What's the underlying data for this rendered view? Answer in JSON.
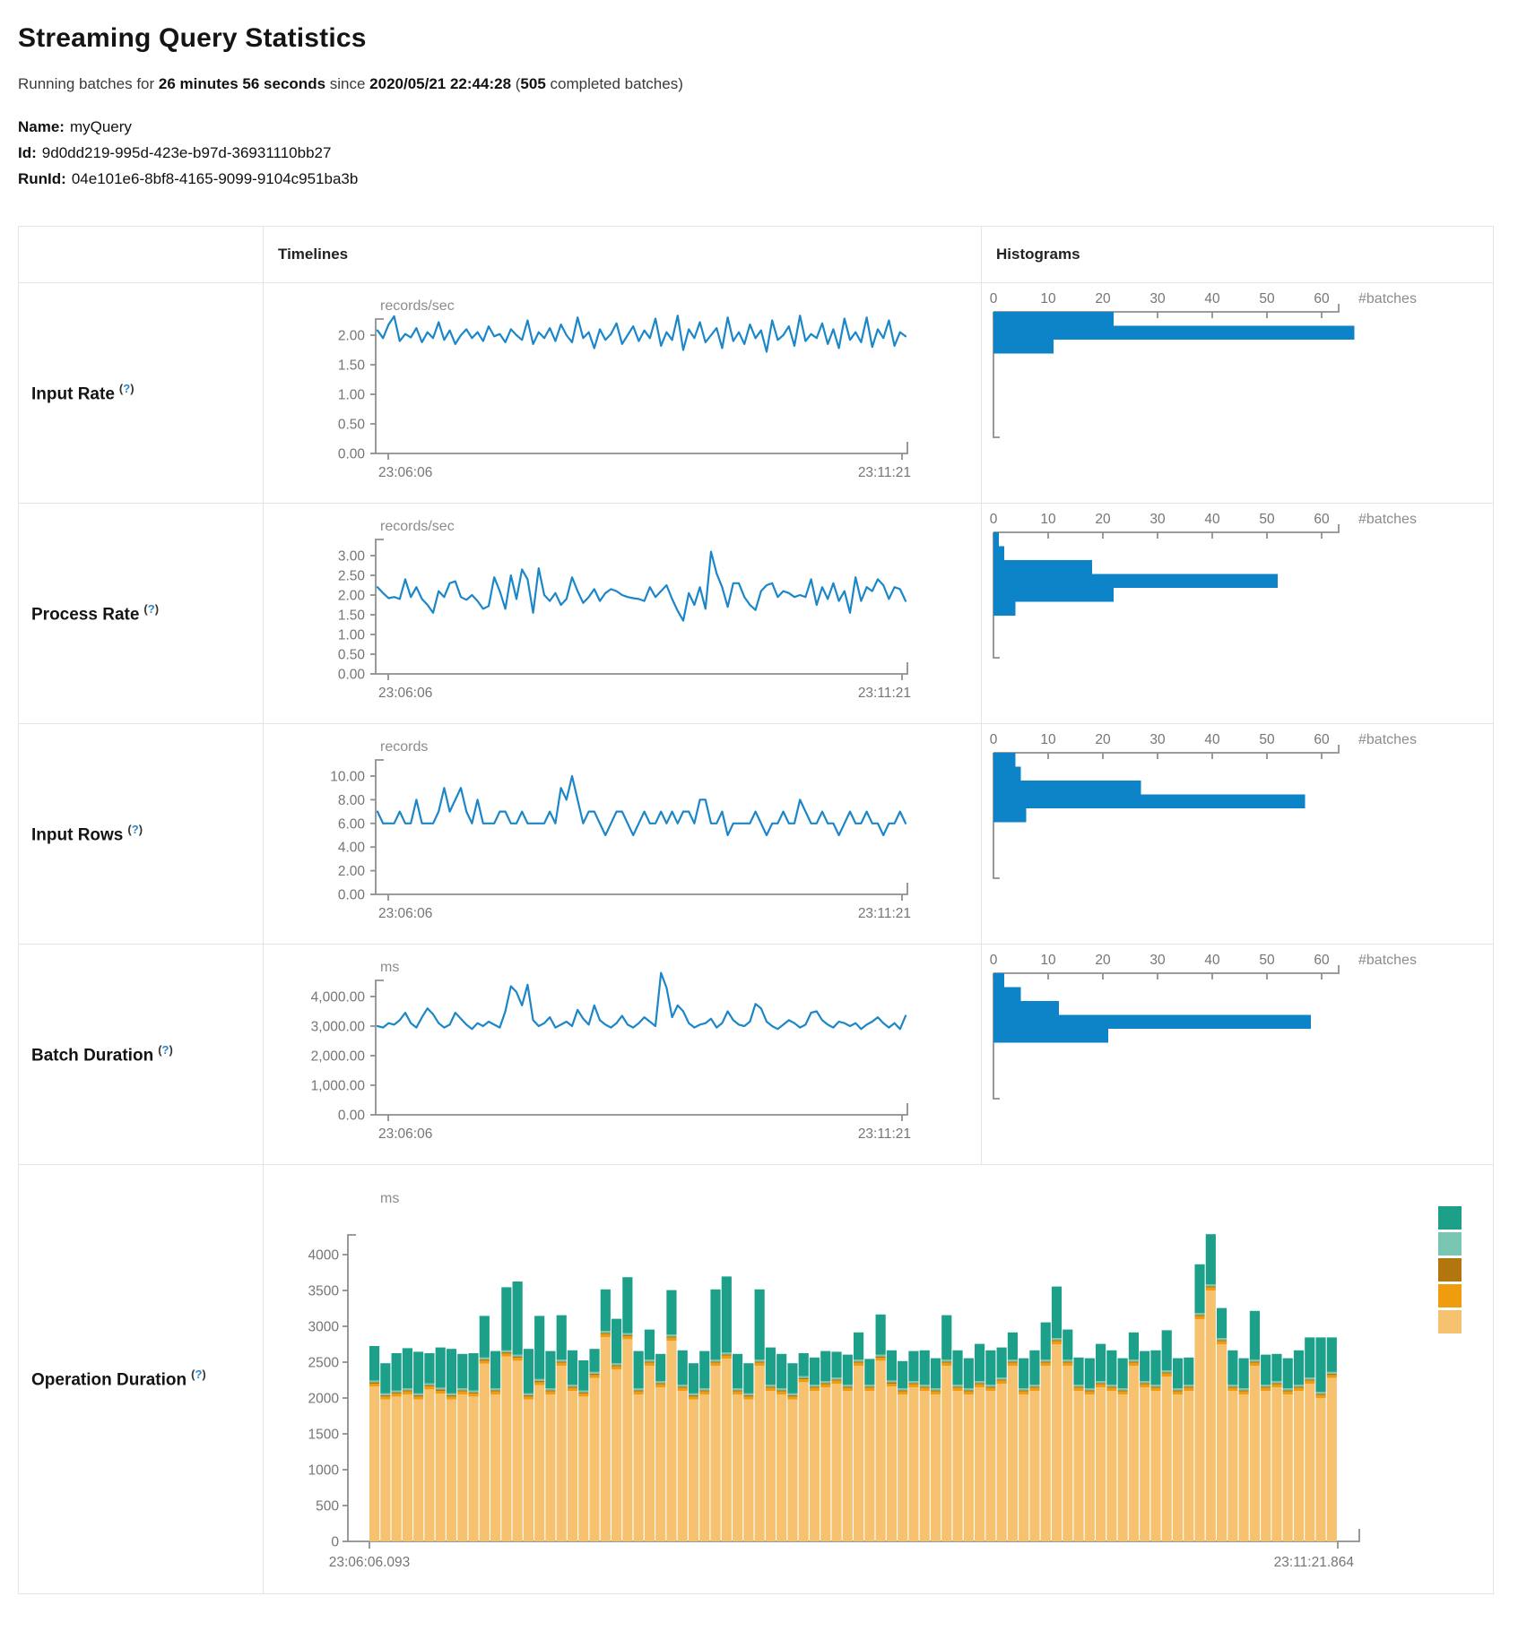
{
  "page": {
    "title": "Streaming Query Statistics",
    "running_prefix": "Running batches for ",
    "duration": "26 minutes 56 seconds",
    "since_infix": " since ",
    "start_time": "2020/05/21 22:44:28",
    "count_open": " (",
    "completed_count": "505",
    "completed_suffix": " completed batches)",
    "name_label": "Name:",
    "name_value": "myQuery",
    "id_label": "Id:",
    "id_value": "9d0dd219-995d-423e-b97d-36931110bb27",
    "runid_label": "RunId:",
    "runid_value": "04e101e6-8bf8-4165-9099-9104c951ba3b"
  },
  "ui": {
    "col_timelines": "Timelines",
    "col_histograms": "Histograms",
    "help_open": "(",
    "help_q": "?",
    "help_close": ")"
  },
  "colors": {
    "line_blue": "#1b86c8",
    "hist_blue": "#0d83c8",
    "axis_gray": "#8f8f8f",
    "op_green": "#1ca089",
    "op_teal_light": "#79c6b3",
    "op_brown": "#b3760e",
    "op_orange": "#f09c0f",
    "op_tan": "#f6c26f"
  },
  "rows": [
    {
      "label": "Input Rate",
      "timeline": {
        "type": "line",
        "unit": "records/sec",
        "y_ticks": [
          "2.00",
          "1.50",
          "1.00",
          "0.50",
          "0.00"
        ],
        "y_max": 2,
        "x_start": "23:06:06",
        "x_end": "23:11:21",
        "values": [
          2.08,
          1.95,
          2.18,
          2.32,
          1.9,
          2.02,
          1.96,
          2.12,
          1.88,
          2.05,
          1.95,
          2.22,
          1.92,
          2.08,
          1.85,
          2.0,
          2.1,
          1.95,
          2.05,
          1.9,
          2.15,
          1.98,
          2.02,
          1.88,
          2.1,
          2.0,
          1.92,
          2.25,
          1.85,
          2.05,
          1.95,
          2.12,
          1.9,
          2.18,
          2.0,
          1.88,
          2.3,
          1.95,
          2.05,
          1.78,
          2.1,
          1.92,
          2.02,
          2.2,
          1.85,
          2.0,
          2.15,
          1.9,
          2.08,
          1.95,
          2.28,
          1.82,
          2.05,
          1.92,
          2.33,
          1.75,
          2.1,
          1.95,
          2.22,
          1.88,
          2.0,
          2.12,
          1.78,
          2.3,
          1.9,
          2.05,
          1.85,
          2.18,
          1.95,
          2.08,
          1.72,
          2.25,
          1.92,
          2.0,
          2.15,
          1.82,
          2.33,
          1.9,
          2.02,
          1.95,
          2.2,
          1.85,
          2.1,
          1.78,
          2.28,
          1.92,
          2.05,
          1.88,
          2.3,
          1.8,
          2.1,
          1.95,
          2.25,
          1.82,
          2.05,
          1.98
        ]
      },
      "histogram": {
        "type": "bar",
        "ticks": [
          0,
          10,
          20,
          30,
          40,
          50,
          60
        ],
        "unit": "#batches",
        "bars": [
          22,
          66,
          11
        ]
      }
    },
    {
      "label": "Process Rate",
      "timeline": {
        "type": "line",
        "unit": "records/sec",
        "y_ticks": [
          "3.00",
          "2.50",
          "2.00",
          "1.50",
          "1.00",
          "0.50",
          "0.00"
        ],
        "y_max": 3,
        "x_start": "23:06:06",
        "x_end": "23:11:21",
        "values": [
          2.2,
          2.05,
          1.92,
          1.95,
          1.9,
          2.4,
          1.95,
          2.2,
          1.9,
          1.75,
          1.55,
          2.1,
          1.95,
          2.3,
          2.35,
          1.95,
          1.88,
          2.0,
          1.85,
          1.65,
          1.72,
          2.45,
          2.1,
          1.65,
          2.5,
          1.9,
          2.65,
          2.4,
          1.55,
          2.68,
          2.0,
          1.85,
          2.05,
          1.75,
          1.9,
          2.45,
          2.1,
          1.8,
          1.95,
          2.15,
          1.85,
          2.05,
          2.15,
          2.1,
          2.0,
          1.95,
          1.92,
          1.9,
          1.85,
          2.2,
          1.95,
          2.1,
          2.25,
          1.9,
          1.6,
          1.35,
          2.05,
          1.75,
          2.2,
          1.65,
          3.1,
          2.55,
          2.2,
          1.7,
          2.3,
          2.3,
          1.95,
          1.75,
          1.62,
          2.1,
          2.25,
          2.3,
          1.95,
          2.1,
          2.05,
          1.95,
          2.0,
          1.95,
          2.4,
          1.75,
          2.2,
          1.9,
          2.3,
          1.85,
          2.1,
          1.55,
          2.45,
          1.85,
          2.2,
          2.1,
          2.4,
          2.25,
          1.9,
          2.2,
          2.15,
          1.85
        ]
      },
      "histogram": {
        "type": "bar",
        "ticks": [
          0,
          10,
          20,
          30,
          40,
          50,
          60
        ],
        "unit": "#batches",
        "bars": [
          1,
          2,
          18,
          52,
          22,
          4
        ]
      }
    },
    {
      "label": "Input Rows",
      "timeline": {
        "type": "line",
        "unit": "records",
        "y_ticks": [
          "10.00",
          "8.00",
          "6.00",
          "4.00",
          "2.00",
          "0.00"
        ],
        "y_max": 10,
        "x_start": "23:06:06",
        "x_end": "23:11:21",
        "values": [
          7,
          6,
          6,
          6,
          7,
          6,
          6,
          8,
          6,
          6,
          6,
          7,
          9,
          7,
          8,
          9,
          7,
          6,
          8,
          6,
          6,
          6,
          7,
          7,
          6,
          6,
          7,
          6,
          6,
          6,
          6,
          7,
          6,
          9,
          8,
          10,
          8,
          6,
          7,
          7,
          6,
          5,
          6,
          7,
          7,
          6,
          5,
          6,
          7,
          6,
          6,
          7,
          6,
          7,
          6,
          7,
          7,
          6,
          8,
          8,
          6,
          6,
          7,
          5,
          6,
          6,
          6,
          6,
          7,
          6,
          5,
          6,
          6,
          7,
          6,
          6,
          8,
          7,
          6,
          6,
          7,
          6,
          6,
          5,
          6,
          7,
          6,
          6,
          7,
          6,
          6,
          5,
          6,
          6,
          7,
          6
        ]
      },
      "histogram": {
        "type": "bar",
        "ticks": [
          0,
          10,
          20,
          30,
          40,
          50,
          60
        ],
        "unit": "#batches",
        "bars": [
          4,
          5,
          27,
          57,
          6
        ]
      }
    },
    {
      "label": "Batch Duration",
      "timeline": {
        "type": "line",
        "unit": "ms",
        "y_ticks": [
          "4,000.00",
          "3,000.00",
          "2,000.00",
          "1,000.00",
          "0.00"
        ],
        "y_max": 4000,
        "x_start": "23:06:06",
        "x_end": "23:11:21",
        "values": [
          3000,
          2950,
          3100,
          3050,
          3200,
          3450,
          3100,
          2950,
          3300,
          3600,
          3400,
          3100,
          2950,
          3050,
          3450,
          3250,
          3050,
          2900,
          3100,
          3000,
          3150,
          3050,
          2950,
          3500,
          4350,
          4150,
          3700,
          4400,
          3200,
          3000,
          3100,
          3300,
          2950,
          3050,
          3150,
          3000,
          3550,
          3250,
          3050,
          3700,
          3200,
          3050,
          2950,
          3100,
          3350,
          3050,
          2950,
          3100,
          3300,
          3150,
          3000,
          4800,
          4300,
          3300,
          3700,
          3500,
          3100,
          2950,
          3050,
          3100,
          3250,
          2950,
          3100,
          3500,
          3200,
          3050,
          3000,
          3150,
          3750,
          3600,
          3150,
          3000,
          2900,
          3050,
          3200,
          3100,
          2950,
          3050,
          3450,
          3500,
          3200,
          3050,
          2950,
          3150,
          3100,
          3000,
          3100,
          2900,
          3050,
          3150,
          3300,
          3100,
          2950,
          3100,
          2900,
          3350
        ]
      },
      "histogram": {
        "type": "bar",
        "ticks": [
          0,
          10,
          20,
          30,
          40,
          50,
          60
        ],
        "unit": "#batches",
        "bars": [
          2,
          5,
          12,
          58,
          21
        ]
      }
    }
  ],
  "operation": {
    "label": "Operation Duration",
    "type": "stacked-bar",
    "unit": "ms",
    "y_ticks": [
      "4000",
      "3500",
      "3000",
      "2500",
      "2000",
      "1500",
      "1000",
      "500",
      "0"
    ],
    "y_max": 4000,
    "x_start": "23:06:06.093",
    "x_end": "23:11:21.864",
    "legend_colors": [
      "#1ca089",
      "#79c6b3",
      "#b3760e",
      "#f09c0f",
      "#f6c26f"
    ],
    "sliver_orange": 40,
    "sliver_brown": 20,
    "sliver_teal": 25,
    "tan": [
      2160,
      1980,
      2020,
      2050,
      1980,
      2120,
      2060,
      1980,
      2050,
      2020,
      2480,
      2050,
      2580,
      2520,
      1980,
      2180,
      2050,
      2450,
      2100,
      2020,
      2280,
      2850,
      2400,
      2820,
      2050,
      2450,
      2150,
      2800,
      2100,
      1980,
      2050,
      2450,
      2550,
      2050,
      1980,
      2450,
      2100,
      2050,
      1980,
      2220,
      2100,
      2150,
      2200,
      2100,
      2450,
      2100,
      2520,
      2160,
      2050,
      2150,
      2100,
      2050,
      2450,
      2100,
      2050,
      2150,
      2100,
      2200,
      2450,
      2050,
      2100,
      2450,
      2750,
      2450,
      2100,
      2050,
      2150,
      2100,
      2050,
      2450,
      2150,
      2100,
      2300,
      2050,
      2100,
      3100,
      3500,
      2750,
      2100,
      2050,
      2450,
      2100,
      2150,
      2050,
      2100,
      2200,
      2000,
      2280
    ],
    "green": [
      480,
      420,
      520,
      560,
      580,
      420,
      560,
      620,
      480,
      520,
      580,
      520,
      880,
      1020,
      620,
      880,
      520,
      620,
      480,
      420,
      320,
      580,
      620,
      780,
      520,
      420,
      380,
      620,
      480,
      420,
      520,
      980,
      1060,
      480,
      420,
      980,
      520,
      480,
      420,
      320,
      380,
      420,
      360,
      420,
      380,
      360,
      560,
      420,
      380,
      420,
      480,
      420,
      620,
      480,
      420,
      520,
      480,
      420,
      380,
      420,
      480,
      520,
      720,
      420,
      380,
      420,
      520,
      480,
      420,
      380,
      420,
      480,
      560,
      420,
      380,
      680,
      700,
      420,
      480,
      420,
      680,
      420,
      380,
      420,
      480,
      560,
      760,
      480
    ]
  }
}
